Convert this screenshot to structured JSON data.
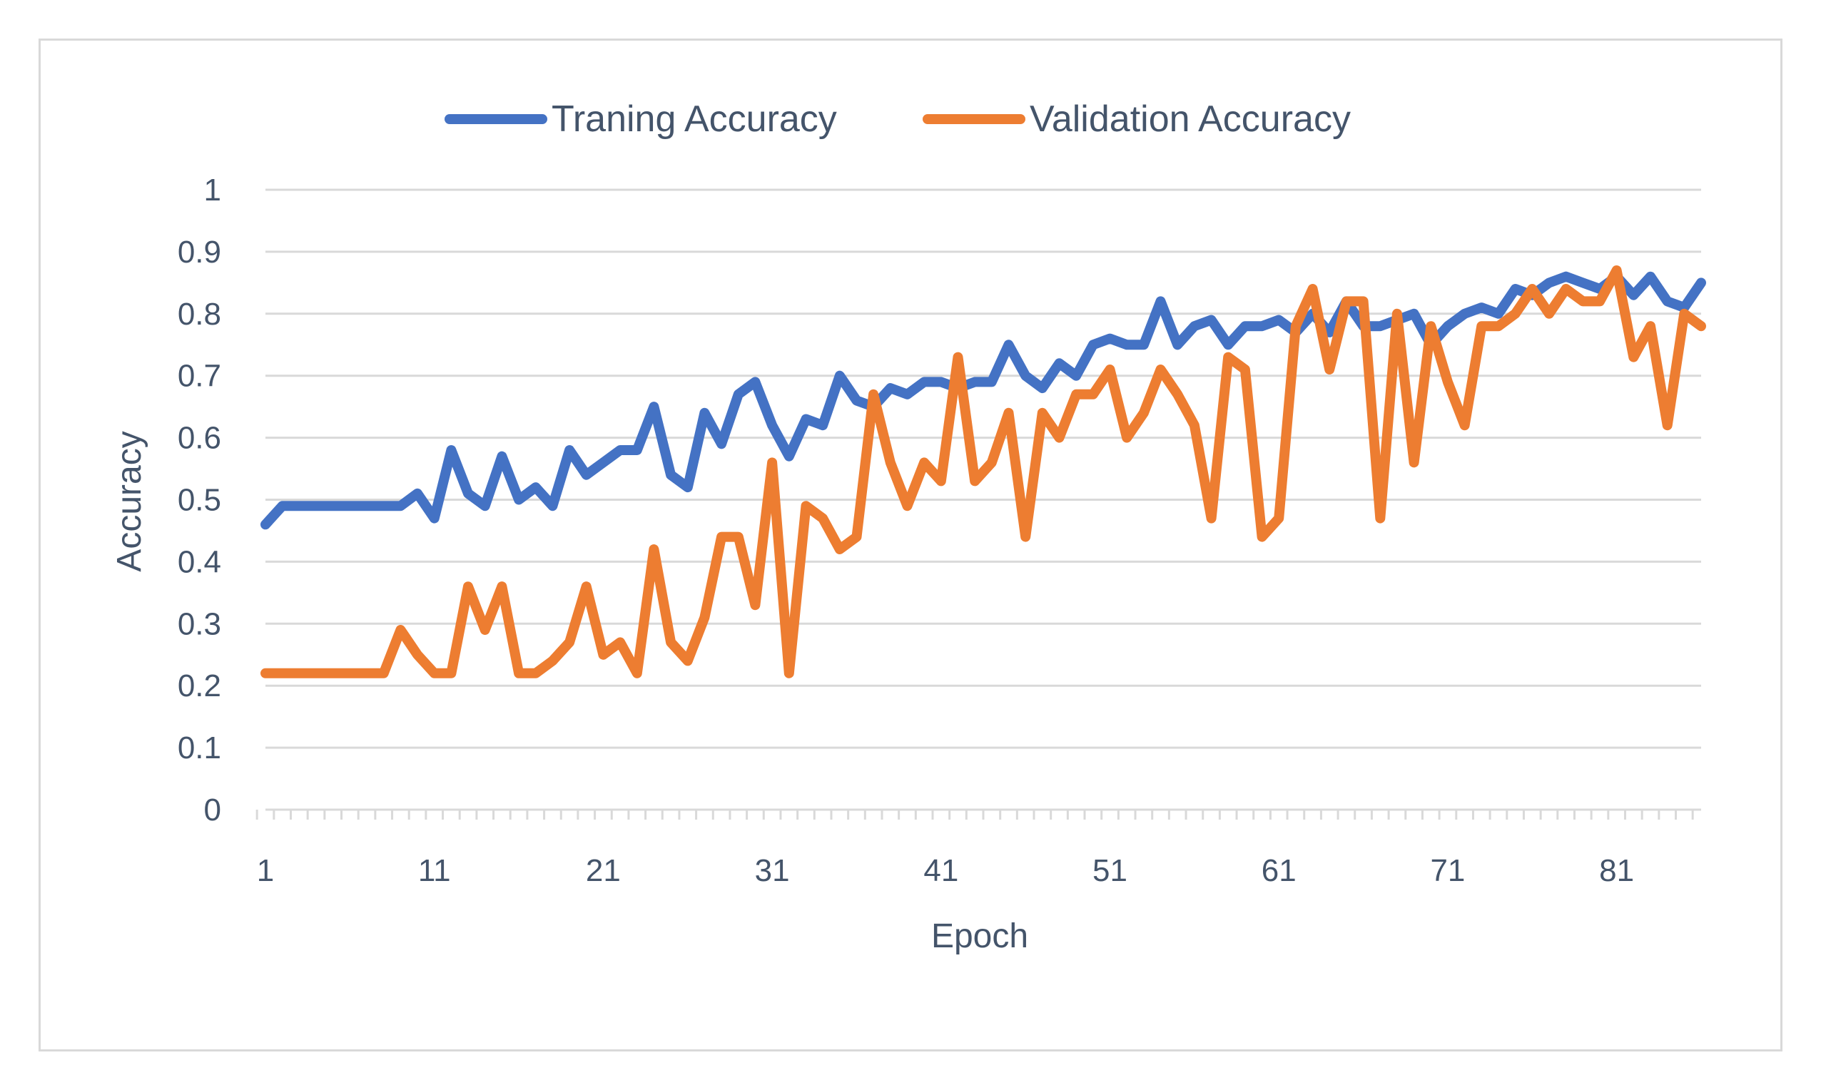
{
  "chart_data": {
    "type": "line",
    "title": "",
    "xlabel": "Epoch",
    "ylabel": "Accuracy",
    "ylim": [
      0,
      1
    ],
    "yticks": [
      "0",
      "0.1",
      "0.2",
      "0.3",
      "0.4",
      "0.5",
      "0.6",
      "0.7",
      "0.8",
      "0.9",
      "1"
    ],
    "xticks": [
      "1",
      "11",
      "21",
      "31",
      "41",
      "51",
      "61",
      "71",
      "81"
    ],
    "x_first": 1,
    "x_last": 86,
    "legend_position": "top-center",
    "series": [
      {
        "name": "Traning Accuracy",
        "color": "#4472c4",
        "values": [
          0.46,
          0.49,
          0.49,
          0.49,
          0.49,
          0.49,
          0.49,
          0.49,
          0.49,
          0.51,
          0.47,
          0.58,
          0.51,
          0.49,
          0.57,
          0.5,
          0.52,
          0.49,
          0.58,
          0.54,
          0.56,
          0.58,
          0.58,
          0.65,
          0.54,
          0.52,
          0.64,
          0.59,
          0.67,
          0.69,
          0.62,
          0.57,
          0.63,
          0.62,
          0.7,
          0.66,
          0.65,
          0.68,
          0.67,
          0.69,
          0.69,
          0.68,
          0.69,
          0.69,
          0.75,
          0.7,
          0.68,
          0.72,
          0.7,
          0.75,
          0.76,
          0.75,
          0.75,
          0.82,
          0.75,
          0.78,
          0.79,
          0.75,
          0.78,
          0.78,
          0.79,
          0.77,
          0.8,
          0.77,
          0.82,
          0.78,
          0.78,
          0.79,
          0.8,
          0.75,
          0.78,
          0.8,
          0.81,
          0.8,
          0.84,
          0.83,
          0.85,
          0.86,
          0.85,
          0.84,
          0.86,
          0.83,
          0.86,
          0.82,
          0.81,
          0.85
        ]
      },
      {
        "name": "Validation Accuracy",
        "color": "#ed7d31",
        "values": [
          0.22,
          0.22,
          0.22,
          0.22,
          0.22,
          0.22,
          0.22,
          0.22,
          0.29,
          0.25,
          0.22,
          0.22,
          0.36,
          0.29,
          0.36,
          0.22,
          0.22,
          0.24,
          0.27,
          0.36,
          0.25,
          0.27,
          0.22,
          0.42,
          0.27,
          0.24,
          0.31,
          0.44,
          0.44,
          0.33,
          0.56,
          0.22,
          0.49,
          0.47,
          0.42,
          0.44,
          0.67,
          0.56,
          0.49,
          0.56,
          0.53,
          0.73,
          0.53,
          0.56,
          0.64,
          0.44,
          0.64,
          0.6,
          0.67,
          0.67,
          0.71,
          0.6,
          0.64,
          0.71,
          0.67,
          0.62,
          0.47,
          0.73,
          0.71,
          0.44,
          0.47,
          0.78,
          0.84,
          0.71,
          0.82,
          0.82,
          0.47,
          0.8,
          0.56,
          0.78,
          0.69,
          0.62,
          0.78,
          0.78,
          0.8,
          0.84,
          0.8,
          0.84,
          0.82,
          0.82,
          0.87,
          0.73,
          0.78,
          0.62,
          0.8,
          0.78
        ]
      }
    ]
  }
}
